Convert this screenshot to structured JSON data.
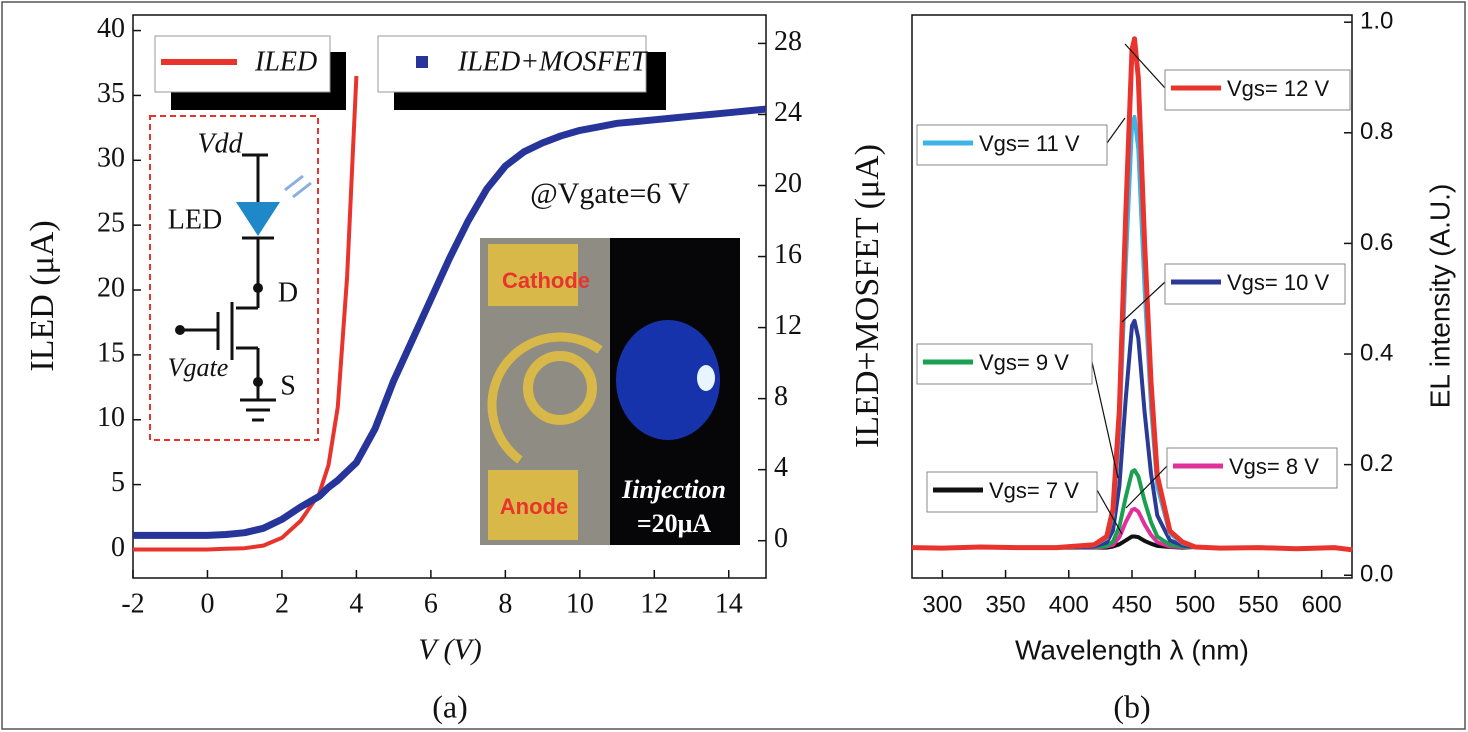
{
  "chart_data": [
    {
      "type": "line",
      "x_label": "V (V)",
      "y_label": "ILED (μA)",
      "y2_label": "ILED+MOSFET (μA)",
      "caption": "(a)",
      "annotation": "@Vgate=6 V",
      "circuit_labels": [
        "Vdd",
        "LED",
        "D",
        "Vgate",
        "S"
      ],
      "photo_labels": [
        "Cathode",
        "Anode",
        "Iinjection",
        "=20μA"
      ],
      "x": [
        -2,
        -1.5,
        -1,
        -0.5,
        0,
        0.5,
        1,
        1.5,
        2,
        2.5,
        3,
        3.25,
        3.5,
        3.75,
        4,
        4.5,
        5,
        5.5,
        6,
        6.5,
        7,
        7.5,
        8,
        8.5,
        9,
        9.5,
        10,
        10.5,
        11,
        11.5,
        12,
        12.5,
        13,
        13.5,
        14,
        14.5,
        15
      ],
      "series": [
        {
          "name": "ILED",
          "color": "#e8342c",
          "values": [
            0,
            0,
            0,
            0,
            0,
            0.05,
            0.1,
            0.3,
            0.9,
            2.2,
            4.3,
            6.5,
            11,
            21,
            36.5,
            null,
            null,
            null,
            null,
            null,
            null,
            null,
            null,
            null,
            null,
            null,
            null,
            null,
            null,
            null,
            null,
            null,
            null,
            null,
            null,
            null,
            null
          ]
        },
        {
          "name": "ILED+MOSFET",
          "color": "#27359a",
          "axis": "y2",
          "values": [
            0.3,
            0.3,
            0.3,
            0.3,
            0.3,
            0.35,
            0.45,
            0.7,
            1.2,
            1.9,
            2.5,
            3,
            3.4,
            3.9,
            4.4,
            6.3,
            9,
            11.3,
            13.6,
            15.9,
            18,
            19.8,
            21.1,
            21.9,
            22.4,
            22.8,
            23.1,
            23.3,
            23.5,
            23.6,
            23.7,
            23.8,
            23.9,
            24,
            24.1,
            24.2,
            24.3
          ]
        }
      ],
      "xlim": [
        -2,
        15
      ],
      "xticks": [
        -2,
        0,
        2,
        4,
        6,
        8,
        10,
        12,
        14
      ],
      "ylim": [
        -2.2,
        41.2
      ],
      "yticks": [
        0,
        5,
        10,
        15,
        20,
        25,
        30,
        35,
        40
      ],
      "y2lim": [
        -2.1,
        29.6
      ],
      "y2ticks": [
        0,
        4,
        8,
        12,
        16,
        20,
        24,
        28
      ]
    },
    {
      "type": "line",
      "x_label": "Wavelength λ (nm)",
      "y_label": "EL intensity (A.U.)",
      "caption": "(b)",
      "x": [
        276,
        300,
        330,
        360,
        390,
        420,
        430,
        435,
        440,
        445,
        450,
        452,
        455,
        460,
        465,
        470,
        480,
        490,
        500,
        520,
        550,
        580,
        610,
        624
      ],
      "series": [
        {
          "name": "Vgs= 12 V",
          "color": "#e8342c",
          "values": [
            0.05,
            0.049,
            0.051,
            0.05,
            0.05,
            0.055,
            0.07,
            0.12,
            0.3,
            0.65,
            0.95,
            0.97,
            0.9,
            0.6,
            0.35,
            0.18,
            0.08,
            0.06,
            0.051,
            0.049,
            0.05,
            0.048,
            0.05,
            0.046
          ]
        },
        {
          "name": "Vgs= 11 V",
          "color": "#3cb4e6",
          "values": [
            0.05,
            0.049,
            0.051,
            0.05,
            0.05,
            0.054,
            0.067,
            0.109,
            0.262,
            0.558,
            0.812,
            0.829,
            0.77,
            0.516,
            0.304,
            0.16,
            0.075,
            0.058,
            0.051,
            0.049,
            0.05,
            0.048,
            0.05,
            0.046
          ]
        },
        {
          "name": "Vgs= 10 V",
          "color": "#2b3a96",
          "values": [
            0.05,
            0.049,
            0.051,
            0.05,
            0.05,
            0.052,
            0.059,
            0.081,
            0.162,
            0.318,
            0.451,
            0.46,
            0.429,
            0.295,
            0.184,
            0.108,
            0.063,
            0.054,
            0.051,
            0.049,
            0.05,
            0.048,
            0.05,
            0.046
          ]
        },
        {
          "name": "Vgs= 9 V",
          "color": "#1aa050",
          "values": [
            0.05,
            0.049,
            0.051,
            0.05,
            0.05,
            0.051,
            0.053,
            0.061,
            0.088,
            0.141,
            0.187,
            0.19,
            0.179,
            0.134,
            0.096,
            0.07,
            0.055,
            0.052,
            0.051,
            0.049,
            0.05,
            0.048,
            0.05,
            0.046
          ]
        },
        {
          "name": "Vgs= 8 V",
          "color": "#e0309a",
          "values": [
            0.05,
            0.049,
            0.051,
            0.05,
            0.05,
            0.05,
            0.052,
            0.055,
            0.069,
            0.096,
            0.118,
            0.12,
            0.115,
            0.092,
            0.073,
            0.06,
            0.052,
            0.051,
            0.051,
            0.049,
            0.05,
            0.048,
            0.05,
            0.046
          ]
        },
        {
          "name": "Vgs= 7 V",
          "color": "#111111",
          "values": [
            0.05,
            0.049,
            0.051,
            0.05,
            0.05,
            0.05,
            0.05,
            0.052,
            0.056,
            0.063,
            0.07,
            0.07,
            0.069,
            0.062,
            0.057,
            0.053,
            0.051,
            0.05,
            0.051,
            0.049,
            0.05,
            0.048,
            0.05,
            0.046
          ]
        }
      ],
      "xlim": [
        276,
        624
      ],
      "xticks": [
        300,
        350,
        400,
        450,
        500,
        550,
        600
      ],
      "ylim": [
        -0.005,
        1.013
      ],
      "yticks": [
        {
          "value": 0,
          "label": "0.0"
        },
        0.2,
        0.4,
        0.6,
        0.8,
        {
          "value": 1,
          "label": "1.0"
        }
      ]
    }
  ]
}
